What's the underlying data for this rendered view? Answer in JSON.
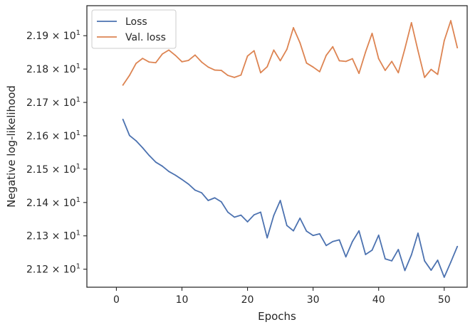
{
  "chart_data": {
    "type": "line",
    "title": "",
    "xlabel": "Epochs",
    "ylabel": "Negative log-likelihood",
    "xlim": [
      -4.5,
      53.5
    ],
    "ylim": [
      21.146,
      21.99
    ],
    "xticks": [
      {
        "value": 0,
        "label": "0"
      },
      {
        "value": 10,
        "label": "10"
      },
      {
        "value": 20,
        "label": "20"
      },
      {
        "value": 30,
        "label": "30"
      },
      {
        "value": 40,
        "label": "40"
      },
      {
        "value": 50,
        "label": "50"
      }
    ],
    "yticks": [
      {
        "value": 21.2,
        "mantissa": "2.12",
        "times": "×",
        "base": "10",
        "exponent": "1"
      },
      {
        "value": 21.3,
        "mantissa": "2.13",
        "times": "×",
        "base": "10",
        "exponent": "1"
      },
      {
        "value": 21.4,
        "mantissa": "2.14",
        "times": "×",
        "base": "10",
        "exponent": "1"
      },
      {
        "value": 21.5,
        "mantissa": "2.15",
        "times": "×",
        "base": "10",
        "exponent": "1"
      },
      {
        "value": 21.6,
        "mantissa": "2.16",
        "times": "×",
        "base": "10",
        "exponent": "1"
      },
      {
        "value": 21.7,
        "mantissa": "2.17",
        "times": "×",
        "base": "10",
        "exponent": "1"
      },
      {
        "value": 21.8,
        "mantissa": "2.18",
        "times": "×",
        "base": "10",
        "exponent": "1"
      },
      {
        "value": 21.9,
        "mantissa": "2.19",
        "times": "×",
        "base": "10",
        "exponent": "1"
      }
    ],
    "grid": false,
    "legend": "upper-left",
    "x": [
      1,
      2,
      3,
      4,
      5,
      6,
      7,
      8,
      9,
      10,
      11,
      12,
      13,
      14,
      15,
      16,
      17,
      18,
      19,
      20,
      21,
      22,
      23,
      24,
      25,
      26,
      27,
      28,
      29,
      30,
      31,
      32,
      33,
      34,
      35,
      36,
      37,
      38,
      39,
      40,
      41,
      42,
      43,
      44,
      45,
      46,
      47,
      48,
      49,
      50,
      51,
      52
    ],
    "series": [
      {
        "name": "Loss",
        "color": "#4c72b0",
        "values": [
          21.649,
          21.601,
          21.585,
          21.564,
          21.541,
          21.521,
          21.509,
          21.493,
          21.482,
          21.469,
          21.455,
          21.437,
          21.429,
          21.406,
          21.414,
          21.402,
          21.371,
          21.356,
          21.362,
          21.342,
          21.363,
          21.371,
          21.294,
          21.361,
          21.406,
          21.331,
          21.315,
          21.353,
          21.314,
          21.301,
          21.306,
          21.271,
          21.283,
          21.288,
          21.237,
          21.283,
          21.315,
          21.244,
          21.257,
          21.302,
          21.231,
          21.225,
          21.259,
          21.196,
          21.243,
          21.308,
          21.225,
          21.197,
          21.227,
          21.176,
          21.221,
          21.268
        ]
      },
      {
        "name": "Val. loss",
        "color": "#dd8452",
        "values": [
          21.752,
          21.781,
          21.817,
          21.832,
          21.821,
          21.819,
          21.845,
          21.857,
          21.841,
          21.822,
          21.826,
          21.842,
          21.821,
          21.806,
          21.797,
          21.796,
          21.781,
          21.775,
          21.782,
          21.839,
          21.855,
          21.789,
          21.807,
          21.857,
          21.825,
          21.859,
          21.924,
          21.879,
          21.818,
          21.806,
          21.792,
          21.841,
          21.867,
          21.825,
          21.823,
          21.831,
          21.787,
          21.851,
          21.907,
          21.831,
          21.796,
          21.823,
          21.789,
          21.861,
          21.939,
          21.855,
          21.775,
          21.799,
          21.784,
          21.885,
          21.945,
          21.864
        ]
      }
    ]
  }
}
